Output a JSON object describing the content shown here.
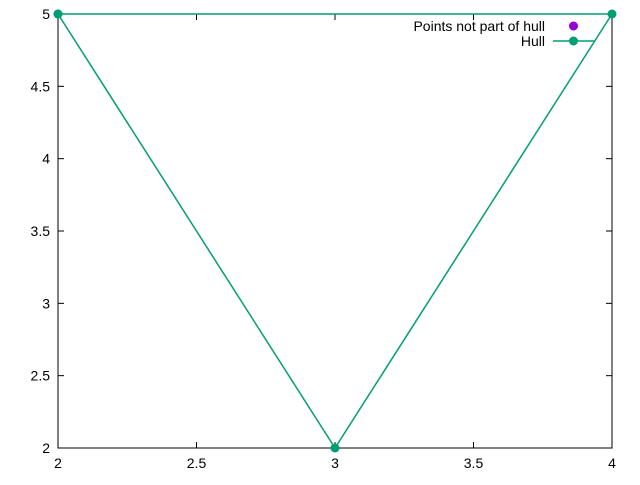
{
  "chart_data": {
    "type": "line",
    "xlim": [
      2,
      4
    ],
    "ylim": [
      2,
      5
    ],
    "x_ticks": [
      2,
      2.5,
      3,
      3.5,
      4
    ],
    "x_tick_labels": [
      "2",
      "2.5",
      "3",
      "3.5",
      "4"
    ],
    "y_ticks": [
      2,
      2.5,
      3,
      3.5,
      4,
      4.5,
      5
    ],
    "y_tick_labels": [
      "2",
      "2.5",
      "3",
      "3.5",
      "4",
      "4.5",
      "5"
    ],
    "grid": false,
    "legend_position": "top-right",
    "series": [
      {
        "name": "Points not part of hull",
        "style": "points",
        "color": "#9400d3",
        "points": []
      },
      {
        "name": "Hull",
        "style": "linespoints",
        "color": "#009e73",
        "points": [
          [
            2,
            5
          ],
          [
            3,
            2
          ],
          [
            4,
            5
          ],
          [
            2,
            5
          ]
        ]
      }
    ]
  }
}
